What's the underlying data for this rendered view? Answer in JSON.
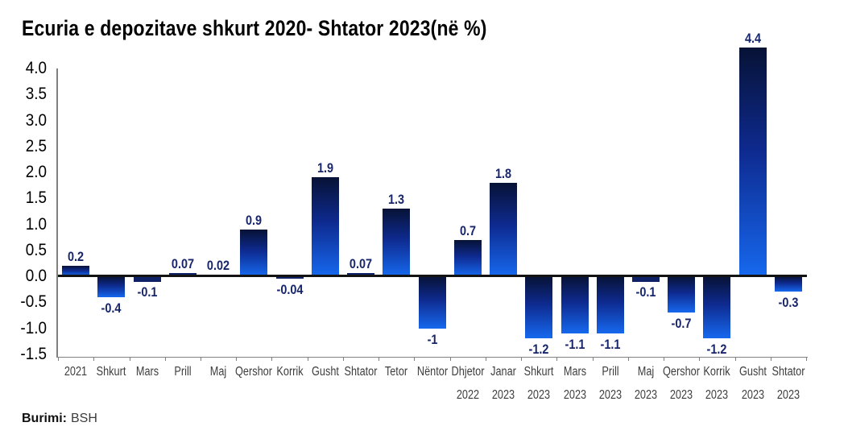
{
  "chart_data": {
    "type": "bar",
    "title": "Ecuria e depozitave shkurt 2020- Shtator 2023(në %)",
    "categories": [
      "2021",
      "Shkurt",
      "Mars",
      "Prill",
      "Maj",
      "Qershor",
      "Korrik",
      "Gusht",
      "Shtator",
      "Tetor",
      "Nëntor",
      "Dhjetor",
      "Janar",
      "Shkurt",
      "Mars",
      "Prill",
      "Maj",
      "Qershor",
      "Korrik",
      "Gusht",
      "Shtator"
    ],
    "category_years": [
      "",
      "",
      "",
      "",
      "",
      "",
      "",
      "",
      "",
      "",
      "",
      "2022",
      "2023",
      "2023",
      "2023",
      "2023",
      "2023",
      "2023",
      "2023",
      "2023",
      "2023"
    ],
    "values": [
      0.2,
      -0.4,
      -0.1,
      0.07,
      0.02,
      0.9,
      -0.04,
      1.9,
      0.07,
      1.3,
      -1,
      0.7,
      1.8,
      -1.2,
      -1.1,
      -1.1,
      -0.1,
      -0.7,
      -1.2,
      4.4,
      -0.3
    ],
    "value_labels": [
      "0.2",
      "-0.4",
      "-0.1",
      "0.07",
      "0.02",
      "0.9",
      "-0.04",
      "1.9",
      "0.07",
      "1.3",
      "-1",
      "0.7",
      "1.8",
      "-1.2",
      "-1.1",
      "-1.1",
      "-0.1",
      "-0.7",
      "-1.2",
      "4.4",
      "-0.3"
    ],
    "y_tick_labels": [
      "4.0",
      "3.5",
      "3.0",
      "2.5",
      "2.0",
      "1.5",
      "1.0",
      "0.5",
      "0.0",
      "-0.5",
      "-1.0",
      "-1.5"
    ],
    "ylim": [
      -1.55,
      4.45
    ],
    "xlabel": "",
    "ylabel": "",
    "grid": false,
    "legend": false
  },
  "source": {
    "label": "Burimi:",
    "value": "BSH"
  },
  "colors": {
    "bar_gradient_top": "#071235",
    "bar_gradient_mid": "#0e2a8f",
    "bar_gradient_bottom": "#1668ee",
    "bar_solid_short": "#0e2166",
    "value_label": "#17266b",
    "axis_line": "#808080",
    "zero_line": "#141414",
    "tick_label": "#3d3d3d",
    "title": "#000000"
  }
}
